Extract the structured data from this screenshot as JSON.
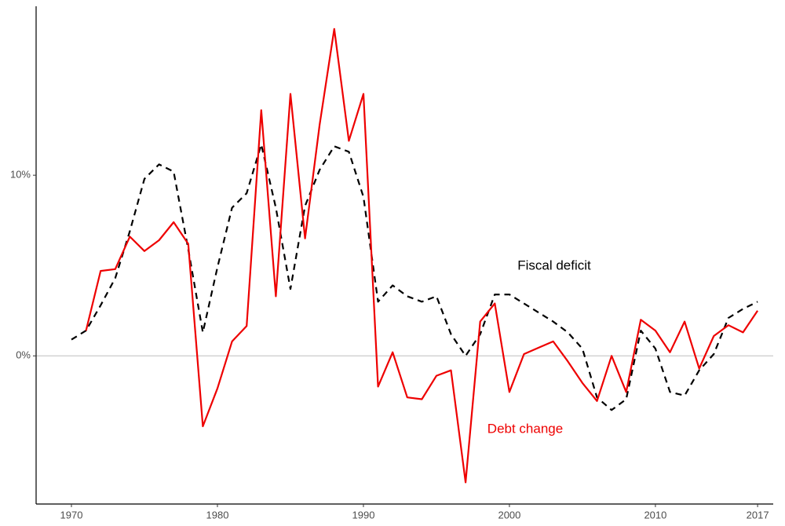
{
  "chart_data": {
    "type": "line",
    "x": [
      1970,
      1971,
      1972,
      1973,
      1974,
      1975,
      1976,
      1977,
      1978,
      1979,
      1980,
      1981,
      1982,
      1983,
      1984,
      1985,
      1986,
      1987,
      1988,
      1989,
      1990,
      1991,
      1992,
      1993,
      1994,
      1995,
      1996,
      1997,
      1998,
      1999,
      2000,
      2001,
      2002,
      2003,
      2004,
      2005,
      2006,
      2007,
      2008,
      2009,
      2010,
      2011,
      2012,
      2013,
      2014,
      2015,
      2016,
      2017
    ],
    "series": [
      {
        "name": "Fiscal deficit",
        "color": "#000000",
        "dash": "dashed",
        "values": [
          0.9,
          1.4,
          2.8,
          4.3,
          6.9,
          9.8,
          10.6,
          10.2,
          5.9,
          1.3,
          4.9,
          8.2,
          9.0,
          11.7,
          8.2,
          3.7,
          8.3,
          10.3,
          11.6,
          11.3,
          8.8,
          3.0,
          3.9,
          3.3,
          3.0,
          3.3,
          1.2,
          0,
          1.2,
          3.4,
          3.4,
          2.9,
          2.4,
          1.9,
          1.3,
          0.4,
          -2.3,
          -3.0,
          -2.4,
          1.4,
          0.4,
          -2.0,
          -2.2,
          -0.8,
          0.1,
          2.1,
          2.6,
          3.0
        ]
      },
      {
        "name": "Debt change",
        "color": "#ee0000",
        "dash": "solid",
        "values": [
          null,
          1.4,
          4.7,
          4.8,
          6.6,
          5.8,
          6.4,
          7.4,
          6.2,
          -3.9,
          -1.8,
          0.8,
          1.65,
          13.6,
          3.3,
          14.5,
          6.5,
          12.8,
          18.1,
          11.9,
          14.5,
          -1.7,
          0.2,
          -2.3,
          -2.4,
          -1.1,
          -0.8,
          -7.0,
          1.9,
          2.9,
          -2.0,
          0.1,
          0.45,
          0.8,
          -0.3,
          -1.5,
          -2.5,
          0,
          -2.0,
          2.0,
          1.4,
          0.2,
          1.9,
          -0.7,
          1.1,
          1.7,
          1.3,
          2.5
        ]
      }
    ],
    "xlim": [
      1967.58,
      2018.07
    ],
    "xticks": [
      1970,
      1980,
      1990,
      2000,
      2010,
      2017
    ],
    "ylim": [
      -8.2,
      19.35
    ],
    "yticks": [
      {
        "value": 0,
        "label": "0%"
      },
      {
        "value": 10,
        "label": "10%"
      }
    ],
    "hline": 0,
    "grid": false
  }
}
